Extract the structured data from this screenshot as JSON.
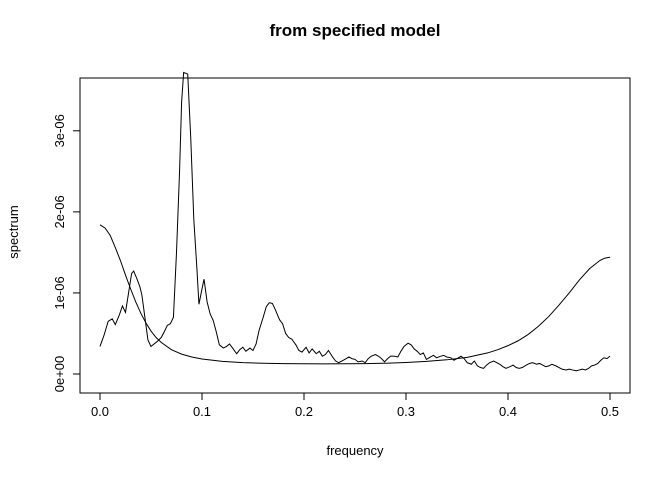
{
  "chart_data": {
    "type": "line",
    "title": "from specified model",
    "xlabel": "frequency",
    "ylabel": "spectrum",
    "xlim": [
      0,
      0.5
    ],
    "ylim": [
      0,
      3.75e-06
    ],
    "grid": false,
    "x_ticks": [
      {
        "value": 0.0,
        "label": "0.0"
      },
      {
        "value": 0.1,
        "label": "0.1"
      },
      {
        "value": 0.2,
        "label": "0.2"
      },
      {
        "value": 0.3,
        "label": "0.3"
      },
      {
        "value": 0.4,
        "label": "0.4"
      },
      {
        "value": 0.5,
        "label": "0.5"
      }
    ],
    "y_ticks": [
      {
        "value": 0,
        "label": "0e+00"
      },
      {
        "value": 1e-06,
        "label": "1e-06"
      },
      {
        "value": 2e-06,
        "label": "2e-06"
      },
      {
        "value": 3e-06,
        "label": "3e-06"
      }
    ],
    "series": [
      {
        "points": [
          [
            0.0,
            3.4e-07
          ],
          [
            0.004,
            4.8e-07
          ],
          [
            0.008,
            6.5e-07
          ],
          [
            0.012,
            6.8e-07
          ],
          [
            0.015,
            6.1e-07
          ],
          [
            0.019,
            7.3e-07
          ],
          [
            0.022,
            8.4e-07
          ],
          [
            0.025,
            7.6e-07
          ],
          [
            0.028,
            1e-06
          ],
          [
            0.031,
            1.24e-06
          ],
          [
            0.033,
            1.27e-06
          ],
          [
            0.036,
            1.18e-06
          ],
          [
            0.039,
            1.08e-06
          ],
          [
            0.041,
            9.8e-07
          ],
          [
            0.044,
            7e-07
          ],
          [
            0.047,
            4.2e-07
          ],
          [
            0.05,
            3.4e-07
          ],
          [
            0.053,
            3.7e-07
          ],
          [
            0.056,
            4e-07
          ],
          [
            0.06,
            4.5e-07
          ],
          [
            0.063,
            5.2e-07
          ],
          [
            0.066,
            6e-07
          ],
          [
            0.069,
            6.2e-07
          ],
          [
            0.072,
            7e-07
          ],
          [
            0.075,
            1.5e-06
          ],
          [
            0.078,
            2.5e-06
          ],
          [
            0.08,
            3.35e-06
          ],
          [
            0.082,
            3.72e-06
          ],
          [
            0.086,
            3.7e-06
          ],
          [
            0.089,
            2.9e-06
          ],
          [
            0.092,
            1.9e-06
          ],
          [
            0.095,
            1.3e-06
          ],
          [
            0.097,
            8.6e-07
          ],
          [
            0.1,
            1.05e-06
          ],
          [
            0.102,
            1.17e-06
          ],
          [
            0.105,
            8.9e-07
          ],
          [
            0.108,
            7.4e-07
          ],
          [
            0.111,
            6.6e-07
          ],
          [
            0.114,
            5.2e-07
          ],
          [
            0.117,
            3.6e-07
          ],
          [
            0.121,
            3.2e-07
          ],
          [
            0.124,
            3.4e-07
          ],
          [
            0.127,
            3.7e-07
          ],
          [
            0.13,
            3.2e-07
          ],
          [
            0.134,
            2.5e-07
          ],
          [
            0.137,
            3e-07
          ],
          [
            0.14,
            3.3e-07
          ],
          [
            0.143,
            2.8e-07
          ],
          [
            0.147,
            3.2e-07
          ],
          [
            0.15,
            2.9e-07
          ],
          [
            0.153,
            3.7e-07
          ],
          [
            0.156,
            5.4e-07
          ],
          [
            0.16,
            7e-07
          ],
          [
            0.163,
            8.3e-07
          ],
          [
            0.166,
            8.8e-07
          ],
          [
            0.169,
            8.7e-07
          ],
          [
            0.172,
            7.9e-07
          ],
          [
            0.176,
            6.7e-07
          ],
          [
            0.179,
            6.2e-07
          ],
          [
            0.182,
            5e-07
          ],
          [
            0.185,
            4.5e-07
          ],
          [
            0.188,
            4.3e-07
          ],
          [
            0.192,
            3.6e-07
          ],
          [
            0.195,
            2.9e-07
          ],
          [
            0.198,
            2.7e-07
          ],
          [
            0.202,
            3.3e-07
          ],
          [
            0.205,
            2.6e-07
          ],
          [
            0.208,
            3.1e-07
          ],
          [
            0.212,
            2.5e-07
          ],
          [
            0.215,
            2.8e-07
          ],
          [
            0.218,
            2.2e-07
          ],
          [
            0.221,
            2.4e-07
          ],
          [
            0.224,
            2.9e-07
          ],
          [
            0.228,
            2.1e-07
          ],
          [
            0.231,
            1.6e-07
          ],
          [
            0.234,
            1.4e-07
          ],
          [
            0.237,
            1.6e-07
          ],
          [
            0.24,
            1.8e-07
          ],
          [
            0.244,
            2.1e-07
          ],
          [
            0.247,
            1.9e-07
          ],
          [
            0.25,
            1.8e-07
          ],
          [
            0.253,
            1.5e-07
          ],
          [
            0.257,
            1.6e-07
          ],
          [
            0.26,
            1.4e-07
          ],
          [
            0.263,
            1.9e-07
          ],
          [
            0.266,
            2.2e-07
          ],
          [
            0.27,
            2.4e-07
          ],
          [
            0.273,
            2.2e-07
          ],
          [
            0.276,
            1.9e-07
          ],
          [
            0.279,
            1.5e-07
          ],
          [
            0.282,
            1.9e-07
          ],
          [
            0.285,
            2.2e-07
          ],
          [
            0.288,
            2.2e-07
          ],
          [
            0.292,
            2.1e-07
          ],
          [
            0.295,
            2.8e-07
          ],
          [
            0.298,
            3.4e-07
          ],
          [
            0.302,
            3.8e-07
          ],
          [
            0.305,
            3.6e-07
          ],
          [
            0.308,
            3.1e-07
          ],
          [
            0.311,
            2.8e-07
          ],
          [
            0.314,
            2.4e-07
          ],
          [
            0.317,
            2.6e-07
          ],
          [
            0.32,
            1.8e-07
          ],
          [
            0.324,
            2.1e-07
          ],
          [
            0.327,
            2.3e-07
          ],
          [
            0.33,
            2e-07
          ],
          [
            0.334,
            2.2e-07
          ],
          [
            0.337,
            2.3e-07
          ],
          [
            0.34,
            2.1e-07
          ],
          [
            0.344,
            2e-07
          ],
          [
            0.347,
            1.7e-07
          ],
          [
            0.35,
            1.9e-07
          ],
          [
            0.354,
            2.2e-07
          ],
          [
            0.357,
            1.9e-07
          ],
          [
            0.36,
            1.4e-07
          ],
          [
            0.364,
            1.2e-07
          ],
          [
            0.367,
            1.6e-07
          ],
          [
            0.37,
            1e-07
          ],
          [
            0.373,
            8e-08
          ],
          [
            0.376,
            7e-08
          ],
          [
            0.379,
            1.1e-07
          ],
          [
            0.382,
            1.4e-07
          ],
          [
            0.386,
            1.6e-07
          ],
          [
            0.389,
            1.4e-07
          ],
          [
            0.392,
            1.2e-07
          ],
          [
            0.395,
            9e-08
          ],
          [
            0.398,
            7e-08
          ],
          [
            0.402,
            9e-08
          ],
          [
            0.405,
            1.1e-07
          ],
          [
            0.408,
            8e-08
          ],
          [
            0.411,
            7e-08
          ],
          [
            0.414,
            8e-08
          ],
          [
            0.418,
            1.1e-07
          ],
          [
            0.421,
            1.3e-07
          ],
          [
            0.424,
            1.4e-07
          ],
          [
            0.428,
            1.2e-07
          ],
          [
            0.431,
            1.3e-07
          ],
          [
            0.434,
            1.1e-07
          ],
          [
            0.437,
            9e-08
          ],
          [
            0.44,
            1e-07
          ],
          [
            0.443,
            1.2e-07
          ],
          [
            0.447,
            1e-07
          ],
          [
            0.45,
            8e-08
          ],
          [
            0.453,
            6e-08
          ],
          [
            0.457,
            5e-08
          ],
          [
            0.46,
            6e-08
          ],
          [
            0.463,
            5e-08
          ],
          [
            0.467,
            4e-08
          ],
          [
            0.47,
            5e-08
          ],
          [
            0.473,
            6e-08
          ],
          [
            0.476,
            5e-08
          ],
          [
            0.479,
            7e-08
          ],
          [
            0.482,
            1e-07
          ],
          [
            0.485,
            1.1e-07
          ],
          [
            0.488,
            1.3e-07
          ],
          [
            0.491,
            1.7e-07
          ],
          [
            0.494,
            2e-07
          ],
          [
            0.497,
            1.9e-07
          ],
          [
            0.5,
            2.2e-07
          ]
        ]
      },
      {
        "points": [
          [
            0.0,
            1.84e-06
          ],
          [
            0.005,
            1.8e-06
          ],
          [
            0.01,
            1.71e-06
          ],
          [
            0.015,
            1.56e-06
          ],
          [
            0.02,
            1.4e-06
          ],
          [
            0.025,
            1.22e-06
          ],
          [
            0.03,
            1.05e-06
          ],
          [
            0.035,
            8.9e-07
          ],
          [
            0.04,
            7.5e-07
          ],
          [
            0.045,
            6.3e-07
          ],
          [
            0.05,
            5.3e-07
          ],
          [
            0.055,
            4.5e-07
          ],
          [
            0.06,
            3.9e-07
          ],
          [
            0.07,
            3e-07
          ],
          [
            0.08,
            2.45e-07
          ],
          [
            0.09,
            2.1e-07
          ],
          [
            0.1,
            1.85e-07
          ],
          [
            0.12,
            1.55e-07
          ],
          [
            0.14,
            1.4e-07
          ],
          [
            0.16,
            1.32e-07
          ],
          [
            0.18,
            1.28e-07
          ],
          [
            0.2,
            1.26e-07
          ],
          [
            0.22,
            1.25e-07
          ],
          [
            0.24,
            1.26e-07
          ],
          [
            0.26,
            1.28e-07
          ],
          [
            0.28,
            1.33e-07
          ],
          [
            0.3,
            1.42e-07
          ],
          [
            0.32,
            1.55e-07
          ],
          [
            0.34,
            1.75e-07
          ],
          [
            0.36,
            2.05e-07
          ],
          [
            0.38,
            2.6e-07
          ],
          [
            0.39,
            3e-07
          ],
          [
            0.4,
            3.5e-07
          ],
          [
            0.41,
            4.1e-07
          ],
          [
            0.42,
            4.9e-07
          ],
          [
            0.43,
            5.9e-07
          ],
          [
            0.44,
            7.1e-07
          ],
          [
            0.45,
            8.5e-07
          ],
          [
            0.46,
            1e-06
          ],
          [
            0.47,
            1.16e-06
          ],
          [
            0.48,
            1.3e-06
          ],
          [
            0.49,
            1.4e-06
          ],
          [
            0.495,
            1.43e-06
          ],
          [
            0.5,
            1.44e-06
          ]
        ]
      }
    ]
  }
}
